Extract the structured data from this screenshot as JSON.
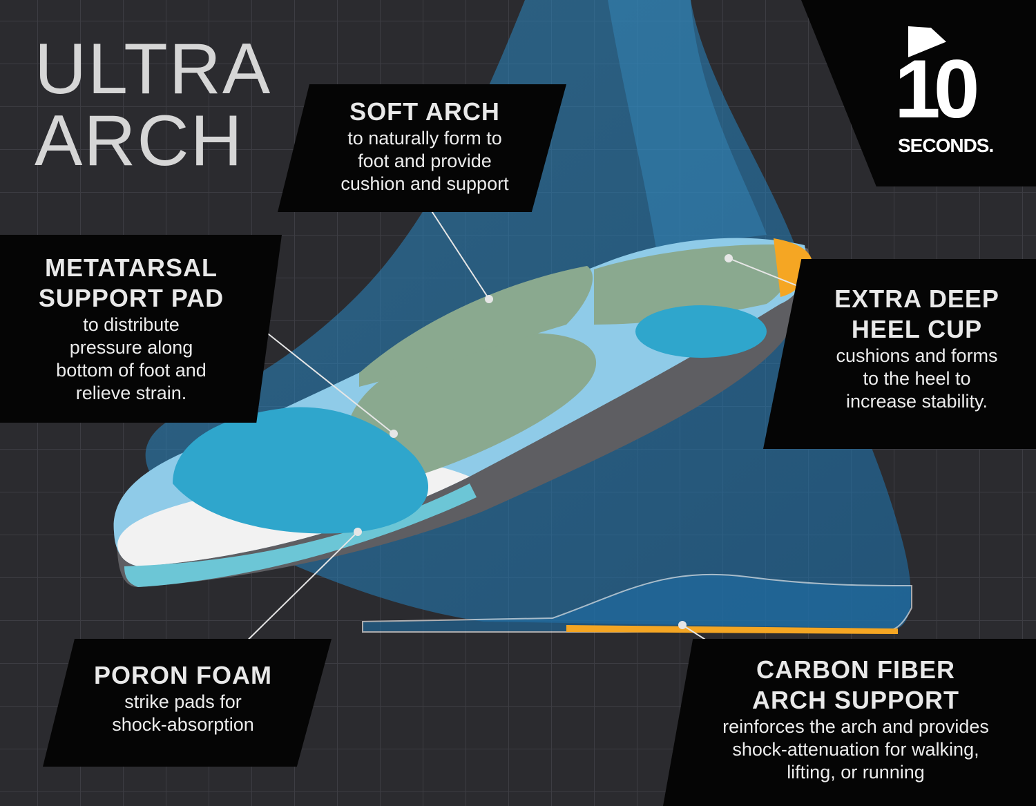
{
  "title": {
    "line1": "ULTRA",
    "line2": "ARCH"
  },
  "logo": {
    "number": "10",
    "wordmark": "SECONDS."
  },
  "callouts": {
    "soft_arch": {
      "heading": "SOFT ARCH",
      "lines": [
        "to naturally form to",
        "foot and provide",
        "cushion and support"
      ]
    },
    "metatarsal": {
      "heading": [
        "METATARSAL",
        "SUPPORT PAD"
      ],
      "lines": [
        "to distribute",
        "pressure along",
        "bottom of foot and",
        "relieve strain."
      ]
    },
    "heel_cup": {
      "heading": [
        "EXTRA DEEP",
        "HEEL CUP"
      ],
      "lines": [
        "cushions and forms",
        "to the heel to",
        "increase stability."
      ]
    },
    "poron": {
      "heading": "PORON FOAM",
      "lines": [
        "strike pads for",
        "shock-absorption"
      ]
    },
    "carbon": {
      "heading": [
        "CARBON FIBER",
        "ARCH SUPPORT"
      ],
      "lines": [
        "reinforces the arch and provides",
        "shock-attenuation for walking,",
        "lifting, or running"
      ]
    }
  },
  "colors": {
    "background": "#2b2b2f",
    "panel": "#050505",
    "foot_blue": "#2f8fc8",
    "pad_green": "#8aa98f",
    "heel_orange": "#f5a623",
    "insole_white": "#f2f2f2"
  }
}
